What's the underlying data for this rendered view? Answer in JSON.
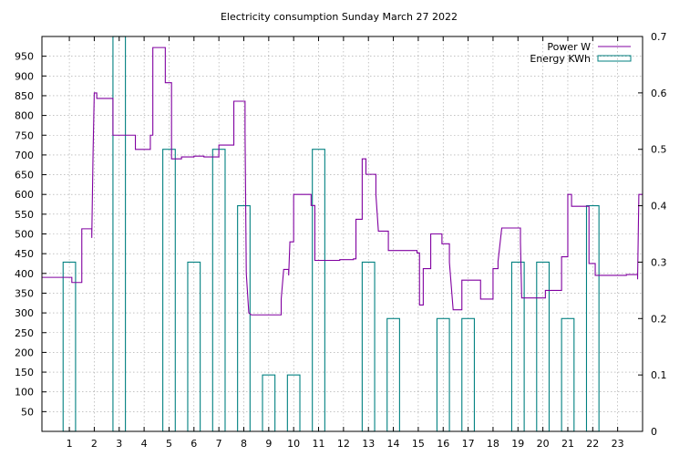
{
  "chart_data": {
    "type": "line",
    "title": "Electricity consumption Sunday March 27 2022",
    "x_ticks": [
      1,
      2,
      3,
      4,
      5,
      6,
      7,
      8,
      9,
      10,
      11,
      12,
      13,
      14,
      15,
      16,
      17,
      18,
      19,
      20,
      21,
      22,
      23
    ],
    "xlim": [
      -0.1,
      24.0
    ],
    "y_left": {
      "ylim": [
        0,
        1000
      ],
      "ticks": [
        50,
        100,
        150,
        200,
        250,
        300,
        350,
        400,
        450,
        500,
        550,
        600,
        650,
        700,
        750,
        800,
        850,
        900,
        950
      ]
    },
    "y_right": {
      "ylim": [
        0,
        0.7
      ],
      "ticks": [
        "0",
        "0.1",
        "0.2",
        "0.3",
        "0.4",
        "0.5",
        "0.6",
        "0.7"
      ]
    },
    "grid": true,
    "legend_position": "top-right",
    "colors": {
      "power": "#8000a0",
      "energy": "#008080"
    },
    "series": [
      {
        "name": "Power W",
        "axis": "left",
        "style": "step",
        "points": [
          [
            -0.1,
            390
          ],
          [
            1.1,
            390
          ],
          [
            1.1,
            377
          ],
          [
            1.5,
            377
          ],
          [
            1.5,
            513
          ],
          [
            1.9,
            513
          ],
          [
            1.9,
            490
          ],
          [
            1.95,
            700
          ],
          [
            2.0,
            857
          ],
          [
            2.1,
            857
          ],
          [
            2.1,
            843
          ],
          [
            2.75,
            843
          ],
          [
            2.75,
            750
          ],
          [
            3.2,
            750
          ],
          [
            3.2,
            750
          ],
          [
            3.65,
            750
          ],
          [
            3.65,
            714
          ],
          [
            4.25,
            714
          ],
          [
            4.25,
            750
          ],
          [
            4.35,
            750
          ],
          [
            4.35,
            972
          ],
          [
            4.85,
            972
          ],
          [
            4.85,
            883
          ],
          [
            5.1,
            883
          ],
          [
            5.1,
            690
          ],
          [
            5.5,
            690
          ],
          [
            5.5,
            695
          ],
          [
            6.0,
            695
          ],
          [
            6.0,
            697
          ],
          [
            6.4,
            697
          ],
          [
            6.4,
            695
          ],
          [
            7.0,
            695
          ],
          [
            7.0,
            725
          ],
          [
            7.6,
            725
          ],
          [
            7.6,
            836
          ],
          [
            8.05,
            836
          ],
          [
            8.05,
            757
          ],
          [
            8.1,
            400
          ],
          [
            8.2,
            300
          ],
          [
            8.3,
            295
          ],
          [
            9.5,
            295
          ],
          [
            9.5,
            335
          ],
          [
            9.6,
            410
          ],
          [
            9.8,
            410
          ],
          [
            9.8,
            395
          ],
          [
            9.85,
            480
          ],
          [
            10.0,
            480
          ],
          [
            10.0,
            600
          ],
          [
            10.7,
            600
          ],
          [
            10.7,
            572
          ],
          [
            10.85,
            572
          ],
          [
            10.85,
            433
          ],
          [
            11.85,
            433
          ],
          [
            11.85,
            435
          ],
          [
            12.4,
            435
          ],
          [
            12.4,
            437
          ],
          [
            12.5,
            437
          ],
          [
            12.5,
            537
          ],
          [
            12.75,
            537
          ],
          [
            12.75,
            690
          ],
          [
            12.9,
            690
          ],
          [
            12.9,
            651
          ],
          [
            13.3,
            651
          ],
          [
            13.3,
            600
          ],
          [
            13.4,
            507
          ],
          [
            13.8,
            507
          ],
          [
            13.8,
            458
          ],
          [
            14.95,
            458
          ],
          [
            14.95,
            452
          ],
          [
            15.05,
            452
          ],
          [
            15.05,
            320
          ],
          [
            15.2,
            320
          ],
          [
            15.2,
            412
          ],
          [
            15.5,
            412
          ],
          [
            15.5,
            500
          ],
          [
            15.95,
            500
          ],
          [
            15.95,
            475
          ],
          [
            16.25,
            475
          ],
          [
            16.25,
            428
          ],
          [
            16.4,
            308
          ],
          [
            16.75,
            308
          ],
          [
            16.75,
            383
          ],
          [
            17.5,
            383
          ],
          [
            17.5,
            335
          ],
          [
            18.0,
            335
          ],
          [
            18.0,
            412
          ],
          [
            18.2,
            412
          ],
          [
            18.2,
            430
          ],
          [
            18.35,
            515
          ],
          [
            19.1,
            515
          ],
          [
            19.1,
            480
          ],
          [
            19.15,
            338
          ],
          [
            20.1,
            338
          ],
          [
            20.1,
            357
          ],
          [
            20.75,
            357
          ],
          [
            20.75,
            442
          ],
          [
            21.0,
            442
          ],
          [
            21.0,
            600
          ],
          [
            21.15,
            600
          ],
          [
            21.15,
            570
          ],
          [
            21.85,
            570
          ],
          [
            21.85,
            425
          ],
          [
            22.1,
            425
          ],
          [
            22.1,
            395
          ],
          [
            23.35,
            395
          ],
          [
            23.35,
            397
          ],
          [
            23.8,
            397
          ],
          [
            23.8,
            385
          ],
          [
            23.85,
            600
          ],
          [
            24.0,
            600
          ]
        ]
      },
      {
        "name": "Energy KWh",
        "axis": "right",
        "style": "boxes",
        "bars": [
          {
            "x": 1,
            "v": 0.3
          },
          {
            "x": 2,
            "v": 0
          },
          {
            "x": 3,
            "v": 0.7
          },
          {
            "x": 4,
            "v": 0
          },
          {
            "x": 5,
            "v": 0.5
          },
          {
            "x": 6,
            "v": 0.3
          },
          {
            "x": 7,
            "v": 0.5
          },
          {
            "x": 8,
            "v": 0.4
          },
          {
            "x": 9,
            "v": 0.1
          },
          {
            "x": 10,
            "v": 0.1
          },
          {
            "x": 11,
            "v": 0.5
          },
          {
            "x": 12,
            "v": 0
          },
          {
            "x": 13,
            "v": 0.3
          },
          {
            "x": 14,
            "v": 0.2
          },
          {
            "x": 15,
            "v": 0
          },
          {
            "x": 16,
            "v": 0.2
          },
          {
            "x": 17,
            "v": 0.2
          },
          {
            "x": 18,
            "v": 0
          },
          {
            "x": 19,
            "v": 0.3
          },
          {
            "x": 20,
            "v": 0.3
          },
          {
            "x": 21,
            "v": 0.2
          },
          {
            "x": 22,
            "v": 0.4
          },
          {
            "x": 23,
            "v": 0
          }
        ]
      }
    ]
  }
}
